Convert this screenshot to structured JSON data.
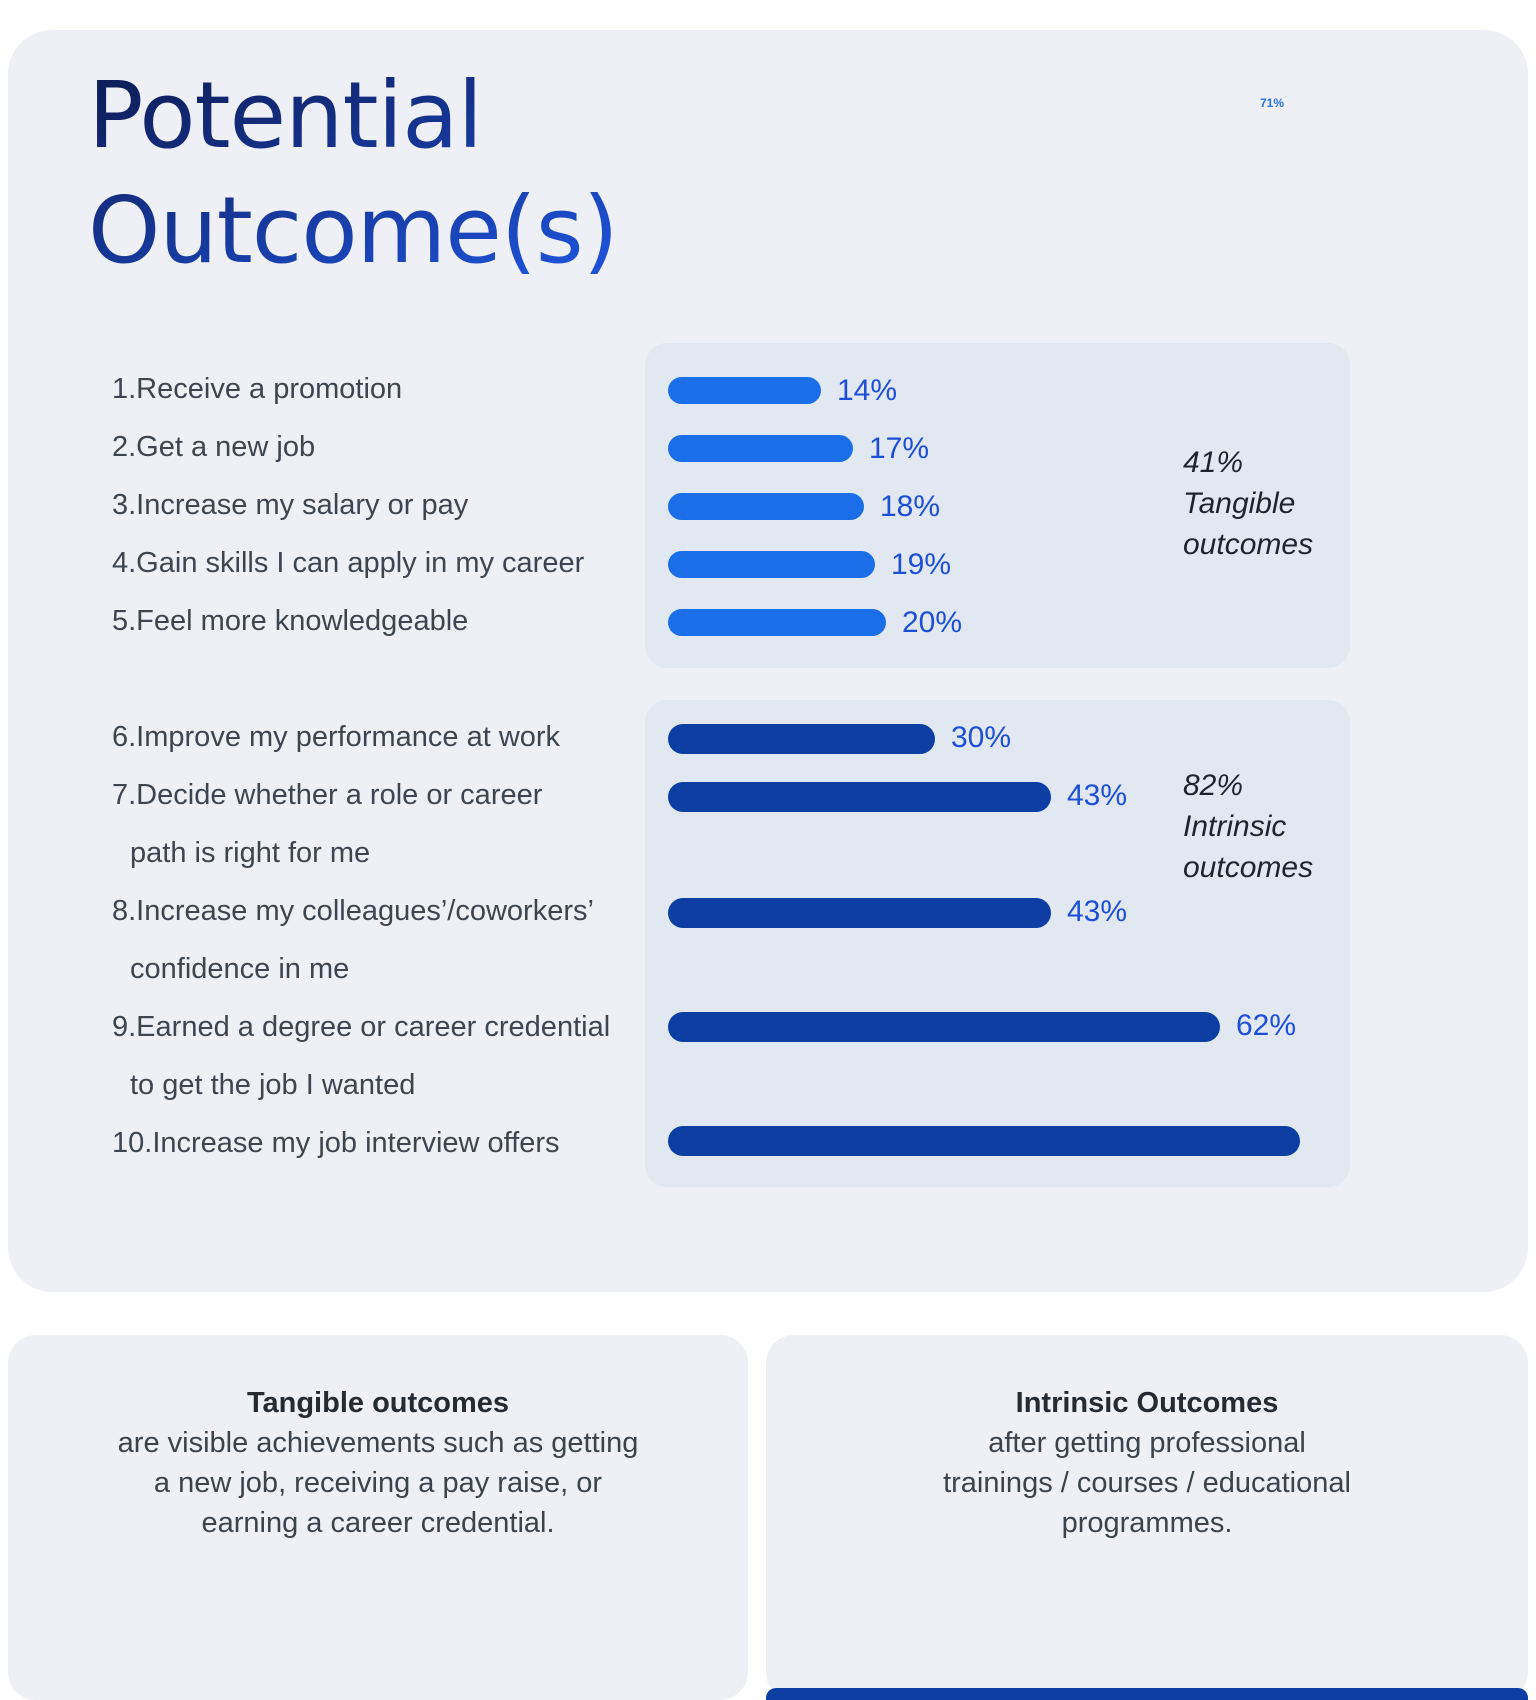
{
  "page": {
    "title_line1": "Potential",
    "title_line2": "Outcome(s)",
    "stray_label": "71%"
  },
  "colors": {
    "background": "#ffffff",
    "card": "#eef0f6",
    "panel": "#e2e8f2",
    "tangible_bar": "#1a6fe8",
    "intrinsic_bar": "#0c3ea3",
    "value_label": "#1d4ed6",
    "title_gradient_start": "#0f1f5c",
    "title_gradient_end": "#1d50d4",
    "bottom_strip": "#0c3ea3"
  },
  "chart_data": {
    "type": "bar",
    "orientation": "horizontal",
    "title": "Potential Outcome(s)",
    "xlim": [
      0,
      100
    ],
    "grid": false,
    "legend": false,
    "groups": [
      {
        "name": "Tangible outcomes",
        "bar_color": "#1a6fe8",
        "annotation_lines": [
          "41%",
          "Tangible",
          "outcomes"
        ],
        "categories": [
          "1.Receive a promotion",
          "2.Get a new job",
          "3.Increase my salary or pay",
          "4.Gain skills I can apply in my career",
          "5.Feel more knowledgeable"
        ],
        "label_lines": [
          [
            "1.Receive a promotion"
          ],
          [
            "2.Get a new job"
          ],
          [
            "3.Increase my salary or pay"
          ],
          [
            "4.Gain skills I can apply in my career"
          ],
          [
            "5.Feel more knowledgeable"
          ]
        ],
        "values": [
          14,
          17,
          18,
          19,
          20
        ],
        "value_labels": [
          "14%",
          "17%",
          "18%",
          "19%",
          "20%"
        ]
      },
      {
        "name": "Intrinsic outcomes",
        "bar_color": "#0c3ea3",
        "annotation_lines": [
          "82%",
          "Intrinsic",
          "outcomes"
        ],
        "categories": [
          "6.Improve my performance at work",
          "7.Decide whether a role or career path is right for me",
          "8.Increase my colleagues’/coworkers’ confidence in me",
          "9.Earned a degree or career credential to get the job I wanted",
          "10.Increase my job interview offers"
        ],
        "label_lines": [
          [
            "6.Improve my performance at work"
          ],
          [
            "7.Decide whether a role or career",
            "path is right for me"
          ],
          [
            "8.Increase my colleagues’/coworkers’",
            "confidence in me"
          ],
          [
            "9.Earned a degree or career credential",
            "to get the job I wanted"
          ],
          [
            "10.Increase my job interview offers"
          ]
        ],
        "values": [
          30,
          43,
          43,
          62,
          71
        ],
        "value_labels": [
          "30%",
          "43%",
          "43%",
          "62%",
          ""
        ]
      }
    ]
  },
  "footer_cards": [
    {
      "title": "Tangible outcomes",
      "body": "are visible achievements such as getting a new job, receiving a pay raise, or earning a career credential."
    },
    {
      "title": "Intrinsic Outcomes",
      "body": "after getting professional trainings / courses / educational programmes."
    }
  ]
}
